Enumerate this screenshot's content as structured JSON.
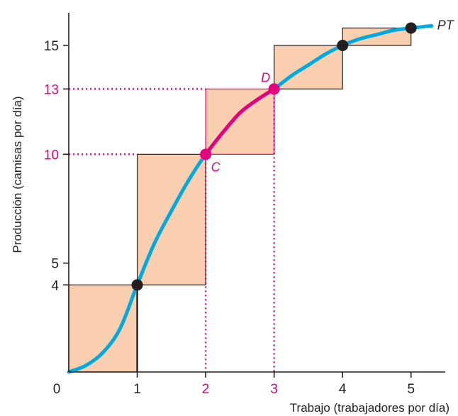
{
  "chart_data": {
    "type": "line",
    "title": "",
    "xlabel": "Trabajo (trabajadores por día)",
    "ylabel": "Producción (camisas por día)",
    "xlim": [
      0,
      5.5
    ],
    "ylim": [
      0,
      16.5
    ],
    "grid": false,
    "x_ticks": [
      {
        "value": 0,
        "label": "0",
        "highlight": false
      },
      {
        "value": 1,
        "label": "1",
        "highlight": false
      },
      {
        "value": 2,
        "label": "2",
        "highlight": true
      },
      {
        "value": 3,
        "label": "3",
        "highlight": true
      },
      {
        "value": 4,
        "label": "4",
        "highlight": false
      },
      {
        "value": 5,
        "label": "5",
        "highlight": false
      }
    ],
    "y_ticks": [
      {
        "value": 4,
        "label": "4",
        "highlight": false
      },
      {
        "value": 5,
        "label": "5",
        "highlight": false
      },
      {
        "value": 10,
        "label": "10",
        "highlight": true
      },
      {
        "value": 13,
        "label": "13",
        "highlight": true
      },
      {
        "value": 15,
        "label": "15",
        "highlight": false
      }
    ],
    "series": [
      {
        "name": "PT",
        "x": [
          0,
          0.25,
          0.5,
          0.75,
          1,
          1.25,
          1.5,
          1.75,
          2,
          2.25,
          2.5,
          2.75,
          3,
          3.25,
          3.5,
          3.75,
          4,
          4.25,
          4.5,
          4.75,
          5,
          5.3
        ],
        "y": [
          0,
          0.3,
          0.9,
          2.0,
          4.0,
          5.9,
          7.4,
          8.8,
          10.0,
          11.0,
          11.9,
          12.5,
          13.0,
          13.6,
          14.1,
          14.6,
          15.0,
          15.3,
          15.5,
          15.7,
          15.8,
          15.9
        ]
      }
    ],
    "highlight_segment": {
      "x_from": 2,
      "x_to": 3
    },
    "points": [
      {
        "x": 1,
        "y": 4,
        "label": "",
        "highlight": false
      },
      {
        "x": 2,
        "y": 10,
        "label": "C",
        "highlight": true
      },
      {
        "x": 3,
        "y": 13,
        "label": "D",
        "highlight": true
      },
      {
        "x": 4,
        "y": 15,
        "label": "",
        "highlight": false
      },
      {
        "x": 5,
        "y": 15.8,
        "label": "",
        "highlight": false
      }
    ],
    "bars": [
      {
        "x_from": 0,
        "x_to": 1,
        "y_from": 0,
        "y_to": 4,
        "highlight": false
      },
      {
        "x_from": 1,
        "x_to": 2,
        "y_from": 4,
        "y_to": 10,
        "highlight": false
      },
      {
        "x_from": 2,
        "x_to": 3,
        "y_from": 10,
        "y_to": 13,
        "highlight": true
      },
      {
        "x_from": 3,
        "x_to": 4,
        "y_from": 13,
        "y_to": 15,
        "highlight": false
      },
      {
        "x_from": 4,
        "x_to": 5,
        "y_from": 15,
        "y_to": 15.8,
        "highlight": false
      }
    ],
    "colors": {
      "curve": "#00a9e0",
      "accent": "#e6007e",
      "bar_fill": "#f9cfb0",
      "bar_stroke": "#231f20",
      "axis": "#231f20",
      "point": "#231f20"
    }
  }
}
